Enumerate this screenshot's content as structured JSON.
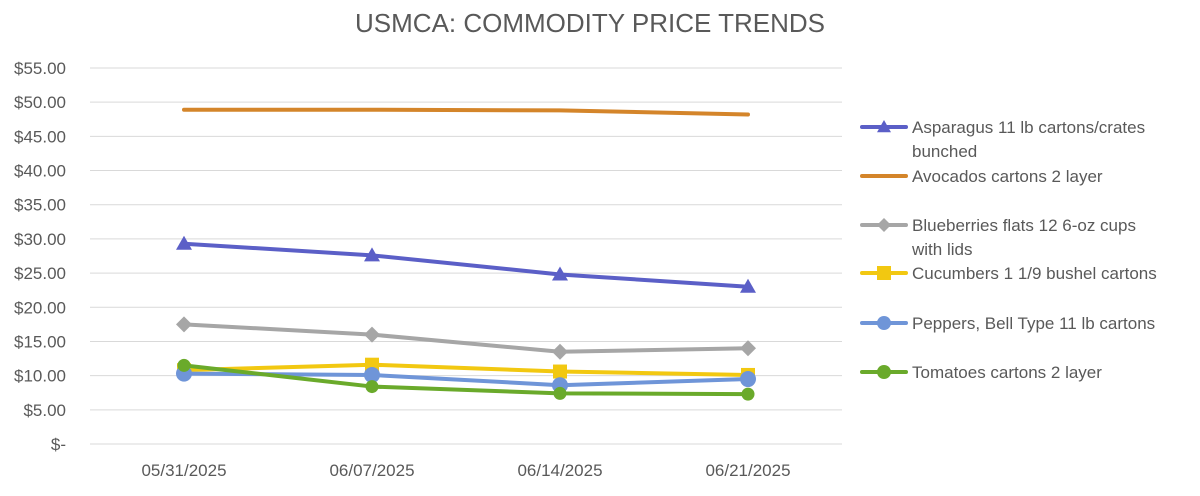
{
  "chart_data": {
    "type": "line",
    "title": "USMCA: COMMODITY PRICE TRENDS",
    "xlabel": "",
    "ylabel": "",
    "categories": [
      "05/31/2025",
      "06/07/2025",
      "06/14/2025",
      "06/21/2025"
    ],
    "y_ticks": [
      "$-",
      "$5.00",
      "$10.00",
      "$15.00",
      "$20.00",
      "$25.00",
      "$30.00",
      "$35.00",
      "$40.00",
      "$45.00",
      "$50.00",
      "$55.00"
    ],
    "ylim": [
      0,
      55
    ],
    "grid": true,
    "legend_position": "right",
    "series": [
      {
        "name": "Asparagus 11 lb cartons/crates bunched",
        "legend_lines": [
          "Asparagus 11 lb cartons/crates",
          "bunched"
        ],
        "color": "#5b5fc7",
        "marker": "triangle",
        "values": [
          29.3,
          27.6,
          24.8,
          23.0
        ]
      },
      {
        "name": "Avocados cartons 2 layer",
        "legend_lines": [
          "Avocados cartons 2 layer"
        ],
        "color": "#d4852a",
        "marker": "none",
        "values": [
          48.9,
          48.9,
          48.8,
          48.2
        ]
      },
      {
        "name": "Blueberries flats 12 6-oz cups with lids",
        "legend_lines": [
          "Blueberries flats 12 6-oz cups",
          "with lids"
        ],
        "color": "#a6a6a6",
        "marker": "diamond",
        "values": [
          17.5,
          16.0,
          13.5,
          14.0
        ]
      },
      {
        "name": "Cucumbers 1 1/9 bushel cartons",
        "legend_lines": [
          "Cucumbers 1 1/9 bushel cartons"
        ],
        "color": "#f2c811",
        "marker": "square",
        "values": [
          10.8,
          11.6,
          10.6,
          10.1
        ]
      },
      {
        "name": "Peppers, Bell Type 11 lb cartons",
        "legend_lines": [
          "Peppers, Bell Type 11 lb cartons"
        ],
        "color": "#6f95d8",
        "marker": "circle",
        "values": [
          10.3,
          10.1,
          8.6,
          9.5
        ]
      },
      {
        "name": "Tomatoes cartons 2 layer",
        "legend_lines": [
          "Tomatoes cartons 2 layer"
        ],
        "color": "#6aaa2b",
        "marker": "circle-small",
        "values": [
          11.5,
          8.4,
          7.4,
          7.3
        ]
      }
    ]
  }
}
